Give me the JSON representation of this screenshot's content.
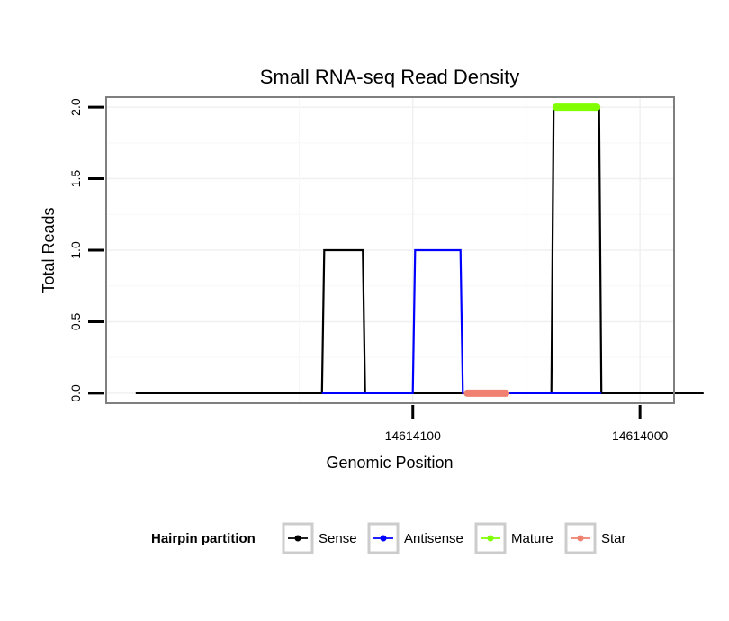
{
  "chart_data": {
    "type": "line",
    "title": "Small RNA-seq Read Density",
    "xlabel": "Genomic Position",
    "ylabel": "Total Reads",
    "xlim": [
      14614235,
      14613985
    ],
    "ylim": [
      -0.07,
      2.07
    ],
    "x_reversed": true,
    "x_ticks": [
      14614100,
      14614000
    ],
    "x_tick_labels": [
      "14614100",
      "14614000"
    ],
    "y_ticks": [
      0.0,
      0.5,
      1.0,
      1.5,
      2.0
    ],
    "y_tick_labels": [
      "0.0",
      "0.5",
      "1.0",
      "1.5",
      "2.0"
    ],
    "grid": true,
    "legend_position": "bottom",
    "legend_title": "Hairpin partition",
    "series": [
      {
        "name": "Sense",
        "color": "#000000",
        "width": 2.2,
        "x": [
          14614222,
          14614140,
          14614139,
          14614122,
          14614121,
          14614039,
          14614038,
          14614018,
          14614017,
          14613972
        ],
        "y": [
          0,
          0,
          1,
          1,
          0,
          0,
          2,
          2,
          0,
          0
        ]
      },
      {
        "name": "Antisense",
        "color": "#0000ff",
        "width": 2.2,
        "x": [
          14614140,
          14614121,
          14614100,
          14614099,
          14614079,
          14614078,
          14614039,
          14614038,
          14614017
        ],
        "y": [
          0,
          0,
          0,
          1,
          1,
          0,
          0,
          0,
          0
        ]
      },
      {
        "name": "Mature",
        "color": "#7fff00",
        "width": 8,
        "x": [
          14614037,
          14614019
        ],
        "y": [
          2,
          2
        ]
      },
      {
        "name": "Star",
        "color": "#f08070",
        "width": 8,
        "x": [
          14614076,
          14614059
        ],
        "y": [
          0,
          0
        ]
      }
    ]
  }
}
